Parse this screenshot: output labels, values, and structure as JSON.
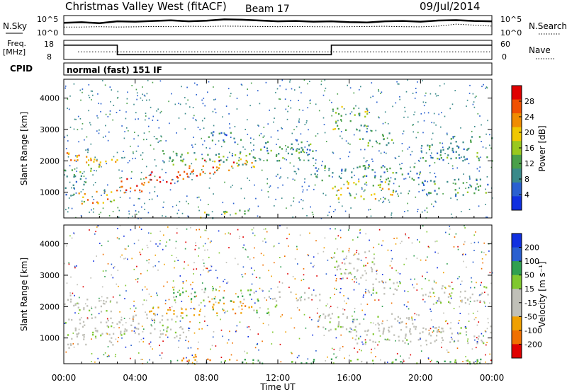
{
  "header": {
    "station": "Christmas Valley West (fitACF)",
    "beam": "Beam 17",
    "date": "09/Jul/2014"
  },
  "panels": {
    "nsky_label": "N.Sky",
    "nsearch_label": "N.Search",
    "freq_label_line1": "Freq.",
    "freq_label_line2": "[MHz]",
    "nave_label": "Nave",
    "cpid_label": "CPID",
    "cpid_value": "normal (fast) 151 IF",
    "noise_ticks_left": [
      "10^5",
      "10^0"
    ],
    "noise_ticks_right": [
      "10^5",
      "10^0"
    ],
    "freq_ticks_left": [
      "18",
      "8"
    ],
    "nave_ticks_right": [
      "60",
      "0"
    ]
  },
  "colors": {
    "power_scale": [
      "#1030e0",
      "#2a60d0",
      "#3a8a8a",
      "#4aa04a",
      "#9ac81e",
      "#f0c800",
      "#f08c00",
      "#f05000",
      "#e00000"
    ],
    "velocity_scale": [
      "#1030e0",
      "#2a60d0",
      "#30a050",
      "#80c830",
      "#c0c0b8",
      "#c0c0b8",
      "#f0a000",
      "#f07000",
      "#e00000"
    ]
  },
  "chart_data": [
    {
      "type": "line",
      "name": "noise",
      "x_range_hours": [
        0,
        24
      ],
      "nsky_series": [
        0.62,
        0.65,
        0.6,
        0.7,
        0.68,
        0.72,
        0.75,
        0.7,
        0.73,
        0.8,
        0.78,
        0.74,
        0.7,
        0.72,
        0.68,
        0.7,
        0.66,
        0.64,
        0.7,
        0.72,
        0.68,
        0.74,
        0.76,
        0.72,
        0.7
      ],
      "nsearch_series": [
        0.4,
        0.4,
        0.42,
        0.4,
        0.41,
        0.43,
        0.42,
        0.44,
        0.43,
        0.45,
        0.44,
        0.43,
        0.42,
        0.43,
        0.42,
        0.41,
        0.42,
        0.43,
        0.44,
        0.42,
        0.41,
        0.45,
        0.55,
        0.5,
        0.45
      ]
    },
    {
      "type": "line",
      "name": "frequency",
      "freq_steps": [
        {
          "t": 0.0,
          "mhz": 15.5
        },
        {
          "t": 3.0,
          "mhz": 10.5
        },
        {
          "t": 15.0,
          "mhz": 15.5
        },
        {
          "t": 24.0,
          "mhz": 15.5
        }
      ],
      "freq_range": [
        8,
        18
      ],
      "nave_value": 24,
      "nave_range": [
        0,
        60
      ]
    },
    {
      "type": "heatmap",
      "name": "power",
      "xlabel": "",
      "ylabel": "Slant Range [km]",
      "x_range_hours": [
        0,
        24
      ],
      "ylim": [
        180,
        4600
      ],
      "y_ticks": [
        1000,
        2000,
        3000,
        4000
      ],
      "colorbar_label": "Power [dB]",
      "colorbar_ticks": [
        "28",
        "24",
        "20",
        "16",
        "12",
        "8",
        "4"
      ],
      "colorbar_range": [
        0,
        32
      ],
      "bands": [
        {
          "t0": 0.0,
          "t1": 3.0,
          "r0": 1850,
          "r1": 2300,
          "level": 22
        },
        {
          "t0": 0.0,
          "t1": 2.0,
          "r0": 1650,
          "r1": 1850,
          "level": 12
        },
        {
          "t0": 0.8,
          "t1": 3.0,
          "r0": 650,
          "r1": 1100,
          "level": 22
        },
        {
          "t0": 0.0,
          "t1": 1.2,
          "r0": 900,
          "r1": 1600,
          "level": 8
        },
        {
          "t0": 2.8,
          "t1": 4.5,
          "r0": 1000,
          "r1": 1500,
          "level": 28
        },
        {
          "t0": 4.5,
          "t1": 7.0,
          "r0": 1250,
          "r1": 1700,
          "level": 28
        },
        {
          "t0": 7.0,
          "t1": 9.5,
          "r0": 1550,
          "r1": 2050,
          "level": 26
        },
        {
          "t0": 9.5,
          "t1": 11.0,
          "r0": 1800,
          "r1": 2250,
          "level": 20
        },
        {
          "t0": 5.5,
          "t1": 10.0,
          "r0": 1900,
          "r1": 2350,
          "level": 12
        },
        {
          "t0": 10.0,
          "t1": 14.0,
          "r0": 2000,
          "r1": 2400,
          "level": 12
        },
        {
          "t0": 11.0,
          "t1": 14.0,
          "r0": 2300,
          "r1": 2700,
          "level": 10
        },
        {
          "t0": 14.0,
          "t1": 20.0,
          "r0": 1400,
          "r1": 1900,
          "level": 10
        },
        {
          "t0": 15.0,
          "t1": 18.5,
          "r0": 800,
          "r1": 1400,
          "level": 18
        },
        {
          "t0": 20.0,
          "t1": 24.0,
          "r0": 900,
          "r1": 1450,
          "level": 10
        },
        {
          "t0": 15.0,
          "t1": 17.0,
          "r0": 3000,
          "r1": 3800,
          "level": 14
        },
        {
          "t0": 16.5,
          "t1": 18.5,
          "r0": 2500,
          "r1": 3000,
          "level": 12
        },
        {
          "t0": 20.0,
          "t1": 24.0,
          "r0": 2000,
          "r1": 2800,
          "level": 10
        },
        {
          "t0": 7.5,
          "t1": 10.5,
          "r0": 200,
          "r1": 450,
          "level": 14
        },
        {
          "t0": 8.0,
          "t1": 10.0,
          "r0": 2600,
          "r1": 3000,
          "level": 8
        }
      ]
    },
    {
      "type": "heatmap",
      "name": "velocity",
      "xlabel": "Time UT",
      "ylabel": "Slant Range [km]",
      "x_range_hours": [
        0,
        24
      ],
      "ylim": [
        180,
        4600
      ],
      "y_ticks": [
        1000,
        2000,
        3000,
        4000
      ],
      "x_ticks": [
        "00:00",
        "04:00",
        "08:00",
        "12:00",
        "16:00",
        "20:00",
        "00:00"
      ],
      "colorbar_label": "Velocity [m s⁻¹]",
      "colorbar_ticks": [
        "200",
        "100",
        "50",
        "15",
        "-15",
        "-50",
        "-100",
        "-200"
      ],
      "bands": [
        {
          "t0": 0.0,
          "t1": 3.0,
          "r0": 1850,
          "r1": 2400,
          "v": 0
        },
        {
          "t0": 0.0,
          "t1": 3.0,
          "r0": 700,
          "r1": 1700,
          "v": 0
        },
        {
          "t0": 3.0,
          "t1": 7.0,
          "r0": 1000,
          "r1": 1800,
          "v": 0
        },
        {
          "t0": 4.5,
          "t1": 8.0,
          "r0": 1700,
          "r1": 2000,
          "v": -40
        },
        {
          "t0": 8.0,
          "t1": 10.5,
          "r0": 1800,
          "r1": 2200,
          "v": -60
        },
        {
          "t0": 10.5,
          "t1": 12.0,
          "r0": 1800,
          "r1": 2100,
          "v": 30
        },
        {
          "t0": 6.0,
          "t1": 11.0,
          "r0": 2200,
          "r1": 2600,
          "v": 30
        },
        {
          "t0": 11.0,
          "t1": 14.5,
          "r0": 2200,
          "r1": 2500,
          "v": 0
        },
        {
          "t0": 14.0,
          "t1": 20.0,
          "r0": 1200,
          "r1": 1800,
          "v": 0
        },
        {
          "t0": 16.0,
          "t1": 24.0,
          "r0": 800,
          "r1": 1400,
          "v": 0
        },
        {
          "t0": 15.0,
          "t1": 17.5,
          "r0": 2900,
          "r1": 3800,
          "v": 0
        },
        {
          "t0": 17.0,
          "t1": 19.0,
          "r0": 2400,
          "r1": 2900,
          "v": 0
        },
        {
          "t0": 20.0,
          "t1": 24.0,
          "r0": 2100,
          "r1": 2700,
          "v": 0
        },
        {
          "t0": 9.0,
          "t1": 24.0,
          "r0": 200,
          "r1": 350,
          "v": 30
        },
        {
          "t0": 6.5,
          "t1": 9.5,
          "r0": 300,
          "r1": 500,
          "v": -70
        }
      ]
    }
  ]
}
